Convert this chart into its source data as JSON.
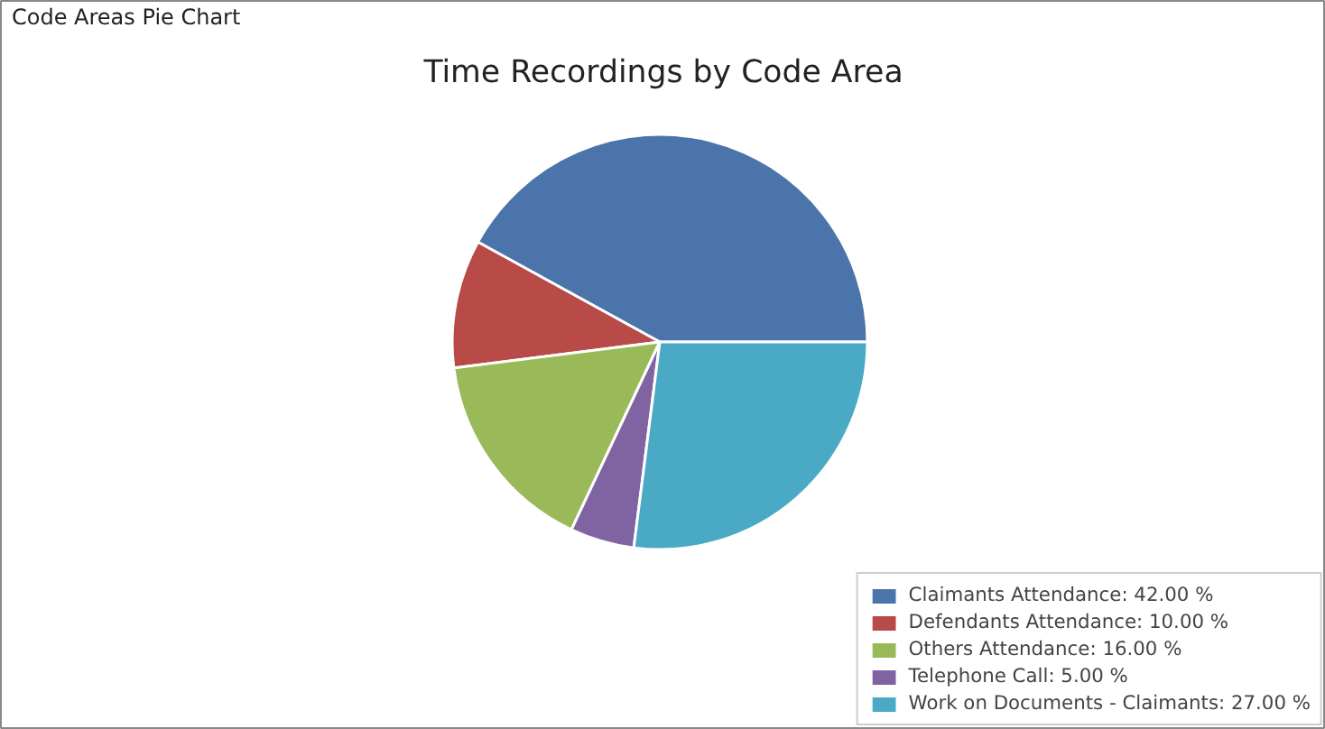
{
  "chart_data": {
    "type": "pie",
    "title": "Time Recordings by Code Area",
    "annotations": [
      "Code Areas Pie Chart"
    ],
    "categories": [
      "Claimants Attendance",
      "Defendants Attendance",
      "Others Attendance",
      "Telephone Call",
      "Work on Documents - Claimants"
    ],
    "values": [
      42,
      10,
      16,
      5,
      27
    ],
    "value_labels": [
      "42.00 %",
      "10.00 %",
      "16.00 %",
      "5.00 %",
      "27.00 %"
    ],
    "colors": [
      "#4a74aa",
      "#b84a47",
      "#9aba59",
      "#8064a2",
      "#4aaac6"
    ],
    "legend": "bottom right"
  }
}
